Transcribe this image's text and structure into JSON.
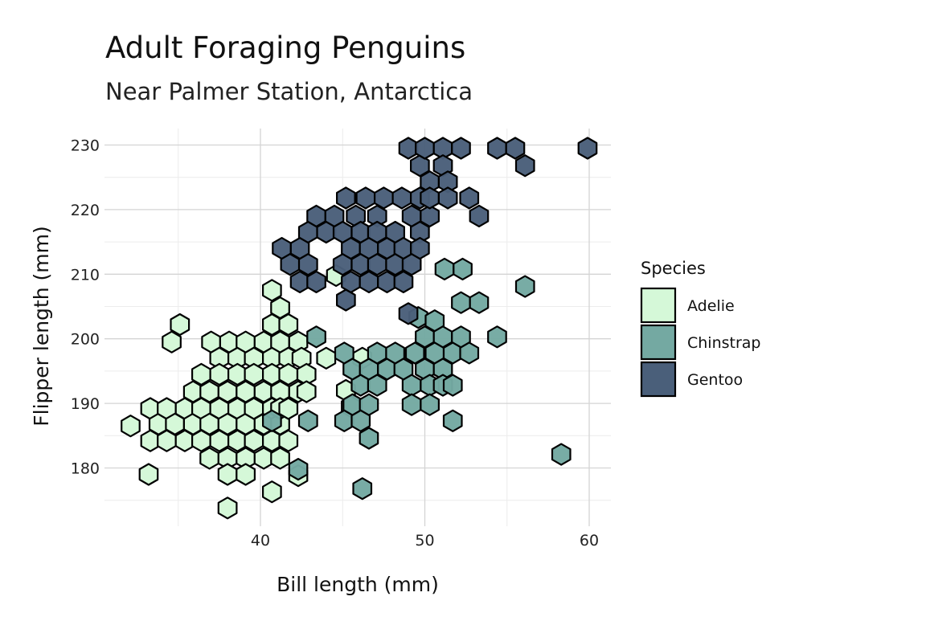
{
  "chart_data": {
    "type": "hexbin",
    "title": "Adult Foraging Penguins",
    "subtitle": "Near Palmer Station, Antarctica",
    "xlabel": "Bill length (mm)",
    "ylabel": "Flipper length (mm)",
    "xlim": [
      30.5,
      61.5
    ],
    "ylim": [
      171,
      232.5
    ],
    "x_ticks": [
      40,
      50,
      60
    ],
    "y_ticks": [
      180,
      190,
      200,
      210,
      220,
      230
    ],
    "grid": true,
    "legend": {
      "title": "Species",
      "position": "right"
    },
    "colors": {
      "Adelie": "#d5f8d8",
      "Chinstrap": "#74a9a2",
      "Gentoo": "#4a5f7a"
    },
    "series": [
      {
        "name": "Adelie",
        "points": [
          [
            32.1,
            186.5
          ],
          [
            33.2,
            179.0
          ],
          [
            33.3,
            184.2
          ],
          [
            33.3,
            189.2
          ],
          [
            33.8,
            186.8
          ],
          [
            34.3,
            189.2
          ],
          [
            34.3,
            184.2
          ],
          [
            34.6,
            199.5
          ],
          [
            34.8,
            186.8
          ],
          [
            35.1,
            202.2
          ],
          [
            35.4,
            189.2
          ],
          [
            35.4,
            184.2
          ],
          [
            35.9,
            191.8
          ],
          [
            35.9,
            186.8
          ],
          [
            36.4,
            194.5
          ],
          [
            36.4,
            189.2
          ],
          [
            36.4,
            184.2
          ],
          [
            36.9,
            191.8
          ],
          [
            36.9,
            186.8
          ],
          [
            36.9,
            181.5
          ],
          [
            37.0,
            199.5
          ],
          [
            37.5,
            197.0
          ],
          [
            37.5,
            194.5
          ],
          [
            37.5,
            189.2
          ],
          [
            37.5,
            184.2
          ],
          [
            38.0,
            191.8
          ],
          [
            38.0,
            186.8
          ],
          [
            38.0,
            181.5
          ],
          [
            38.0,
            173.8
          ],
          [
            38.0,
            179.0
          ],
          [
            38.1,
            199.5
          ],
          [
            38.6,
            197.0
          ],
          [
            38.6,
            194.5
          ],
          [
            38.6,
            189.2
          ],
          [
            38.6,
            184.2
          ],
          [
            39.1,
            191.8
          ],
          [
            39.1,
            186.8
          ],
          [
            39.1,
            181.5
          ],
          [
            39.1,
            199.5
          ],
          [
            39.1,
            179.0
          ],
          [
            39.6,
            197.0
          ],
          [
            39.6,
            194.5
          ],
          [
            39.6,
            189.2
          ],
          [
            39.6,
            184.2
          ],
          [
            40.2,
            199.5
          ],
          [
            40.2,
            191.8
          ],
          [
            40.2,
            186.8
          ],
          [
            40.2,
            181.5
          ],
          [
            40.7,
            197.0
          ],
          [
            40.7,
            194.5
          ],
          [
            40.7,
            189.2
          ],
          [
            40.7,
            184.2
          ],
          [
            40.7,
            202.2
          ],
          [
            40.7,
            207.5
          ],
          [
            40.7,
            176.3
          ],
          [
            41.2,
            199.5
          ],
          [
            41.2,
            191.8
          ],
          [
            41.2,
            186.8
          ],
          [
            41.2,
            181.5
          ],
          [
            41.2,
            204.8
          ],
          [
            41.2,
            189.2
          ],
          [
            41.7,
            197.0
          ],
          [
            41.7,
            194.5
          ],
          [
            41.7,
            189.2
          ],
          [
            41.7,
            184.2
          ],
          [
            41.7,
            202.2
          ],
          [
            42.3,
            199.5
          ],
          [
            42.3,
            191.8
          ],
          [
            42.3,
            178.8
          ],
          [
            42.5,
            197.0
          ],
          [
            42.8,
            194.5
          ],
          [
            42.8,
            191.8
          ],
          [
            44.0,
            197.0
          ],
          [
            44.6,
            209.8
          ],
          [
            45.2,
            192.0
          ],
          [
            45.5,
            189.5
          ],
          [
            46.2,
            197.0
          ]
        ]
      },
      {
        "name": "Chinstrap",
        "points": [
          [
            40.7,
            187.3
          ],
          [
            42.3,
            179.8
          ],
          [
            42.9,
            187.3
          ],
          [
            43.4,
            200.3
          ],
          [
            45.1,
            197.8
          ],
          [
            45.1,
            187.3
          ],
          [
            45.6,
            195.3
          ],
          [
            45.6,
            189.8
          ],
          [
            46.1,
            192.8
          ],
          [
            46.1,
            187.3
          ],
          [
            46.2,
            176.8
          ],
          [
            46.6,
            195.3
          ],
          [
            46.6,
            189.8
          ],
          [
            46.6,
            184.6
          ],
          [
            47.1,
            197.8
          ],
          [
            47.1,
            192.8
          ],
          [
            47.7,
            195.3
          ],
          [
            48.2,
            197.8
          ],
          [
            48.7,
            195.3
          ],
          [
            49.2,
            192.8
          ],
          [
            49.2,
            189.8
          ],
          [
            49.4,
            197.8
          ],
          [
            49.6,
            203.3
          ],
          [
            50.0,
            200.3
          ],
          [
            50.0,
            195.3
          ],
          [
            50.3,
            192.8
          ],
          [
            50.3,
            189.8
          ],
          [
            50.6,
            197.8
          ],
          [
            50.6,
            202.8
          ],
          [
            51.1,
            195.3
          ],
          [
            51.1,
            200.3
          ],
          [
            51.1,
            192.8
          ],
          [
            51.2,
            210.8
          ],
          [
            51.7,
            197.8
          ],
          [
            51.7,
            192.8
          ],
          [
            51.7,
            187.3
          ],
          [
            52.2,
            200.3
          ],
          [
            52.2,
            205.6
          ],
          [
            52.3,
            210.8
          ],
          [
            52.7,
            197.8
          ],
          [
            53.3,
            205.6
          ],
          [
            54.4,
            200.3
          ],
          [
            56.1,
            208.1
          ],
          [
            58.3,
            182.1
          ]
        ]
      },
      {
        "name": "Gentoo",
        "points": [
          [
            41.3,
            214.0
          ],
          [
            41.8,
            211.5
          ],
          [
            42.4,
            214.0
          ],
          [
            42.4,
            208.8
          ],
          [
            42.9,
            216.5
          ],
          [
            42.9,
            211.5
          ],
          [
            43.4,
            219.0
          ],
          [
            43.4,
            208.8
          ],
          [
            44.0,
            216.5
          ],
          [
            44.5,
            219.0
          ],
          [
            45.0,
            216.5
          ],
          [
            45.0,
            211.5
          ],
          [
            45.2,
            206.0
          ],
          [
            45.2,
            221.8
          ],
          [
            45.5,
            214.0
          ],
          [
            45.5,
            208.8
          ],
          [
            45.8,
            219.0
          ],
          [
            46.1,
            216.5
          ],
          [
            46.1,
            211.5
          ],
          [
            46.4,
            221.8
          ],
          [
            46.6,
            214.0
          ],
          [
            46.6,
            208.8
          ],
          [
            47.1,
            219.0
          ],
          [
            47.1,
            216.5
          ],
          [
            47.1,
            211.5
          ],
          [
            47.5,
            221.8
          ],
          [
            47.7,
            214.0
          ],
          [
            47.7,
            208.8
          ],
          [
            48.2,
            216.5
          ],
          [
            48.2,
            211.5
          ],
          [
            48.6,
            221.8
          ],
          [
            48.7,
            214.0
          ],
          [
            48.7,
            208.8
          ],
          [
            49.0,
            229.5
          ],
          [
            49.2,
            219.0
          ],
          [
            49.2,
            211.5
          ],
          [
            49.0,
            203.9
          ],
          [
            49.7,
            221.8
          ],
          [
            49.7,
            216.5
          ],
          [
            49.7,
            214.0
          ],
          [
            49.7,
            226.8
          ],
          [
            50.0,
            229.5
          ],
          [
            50.3,
            219.0
          ],
          [
            50.3,
            224.3
          ],
          [
            50.3,
            221.8
          ],
          [
            51.1,
            229.5
          ],
          [
            51.1,
            226.8
          ],
          [
            51.4,
            224.3
          ],
          [
            51.4,
            221.8
          ],
          [
            52.2,
            229.5
          ],
          [
            52.7,
            221.8
          ],
          [
            53.3,
            219.0
          ],
          [
            54.4,
            229.5
          ],
          [
            55.5,
            229.5
          ],
          [
            56.1,
            226.8
          ],
          [
            59.9,
            229.5
          ]
        ]
      }
    ]
  }
}
